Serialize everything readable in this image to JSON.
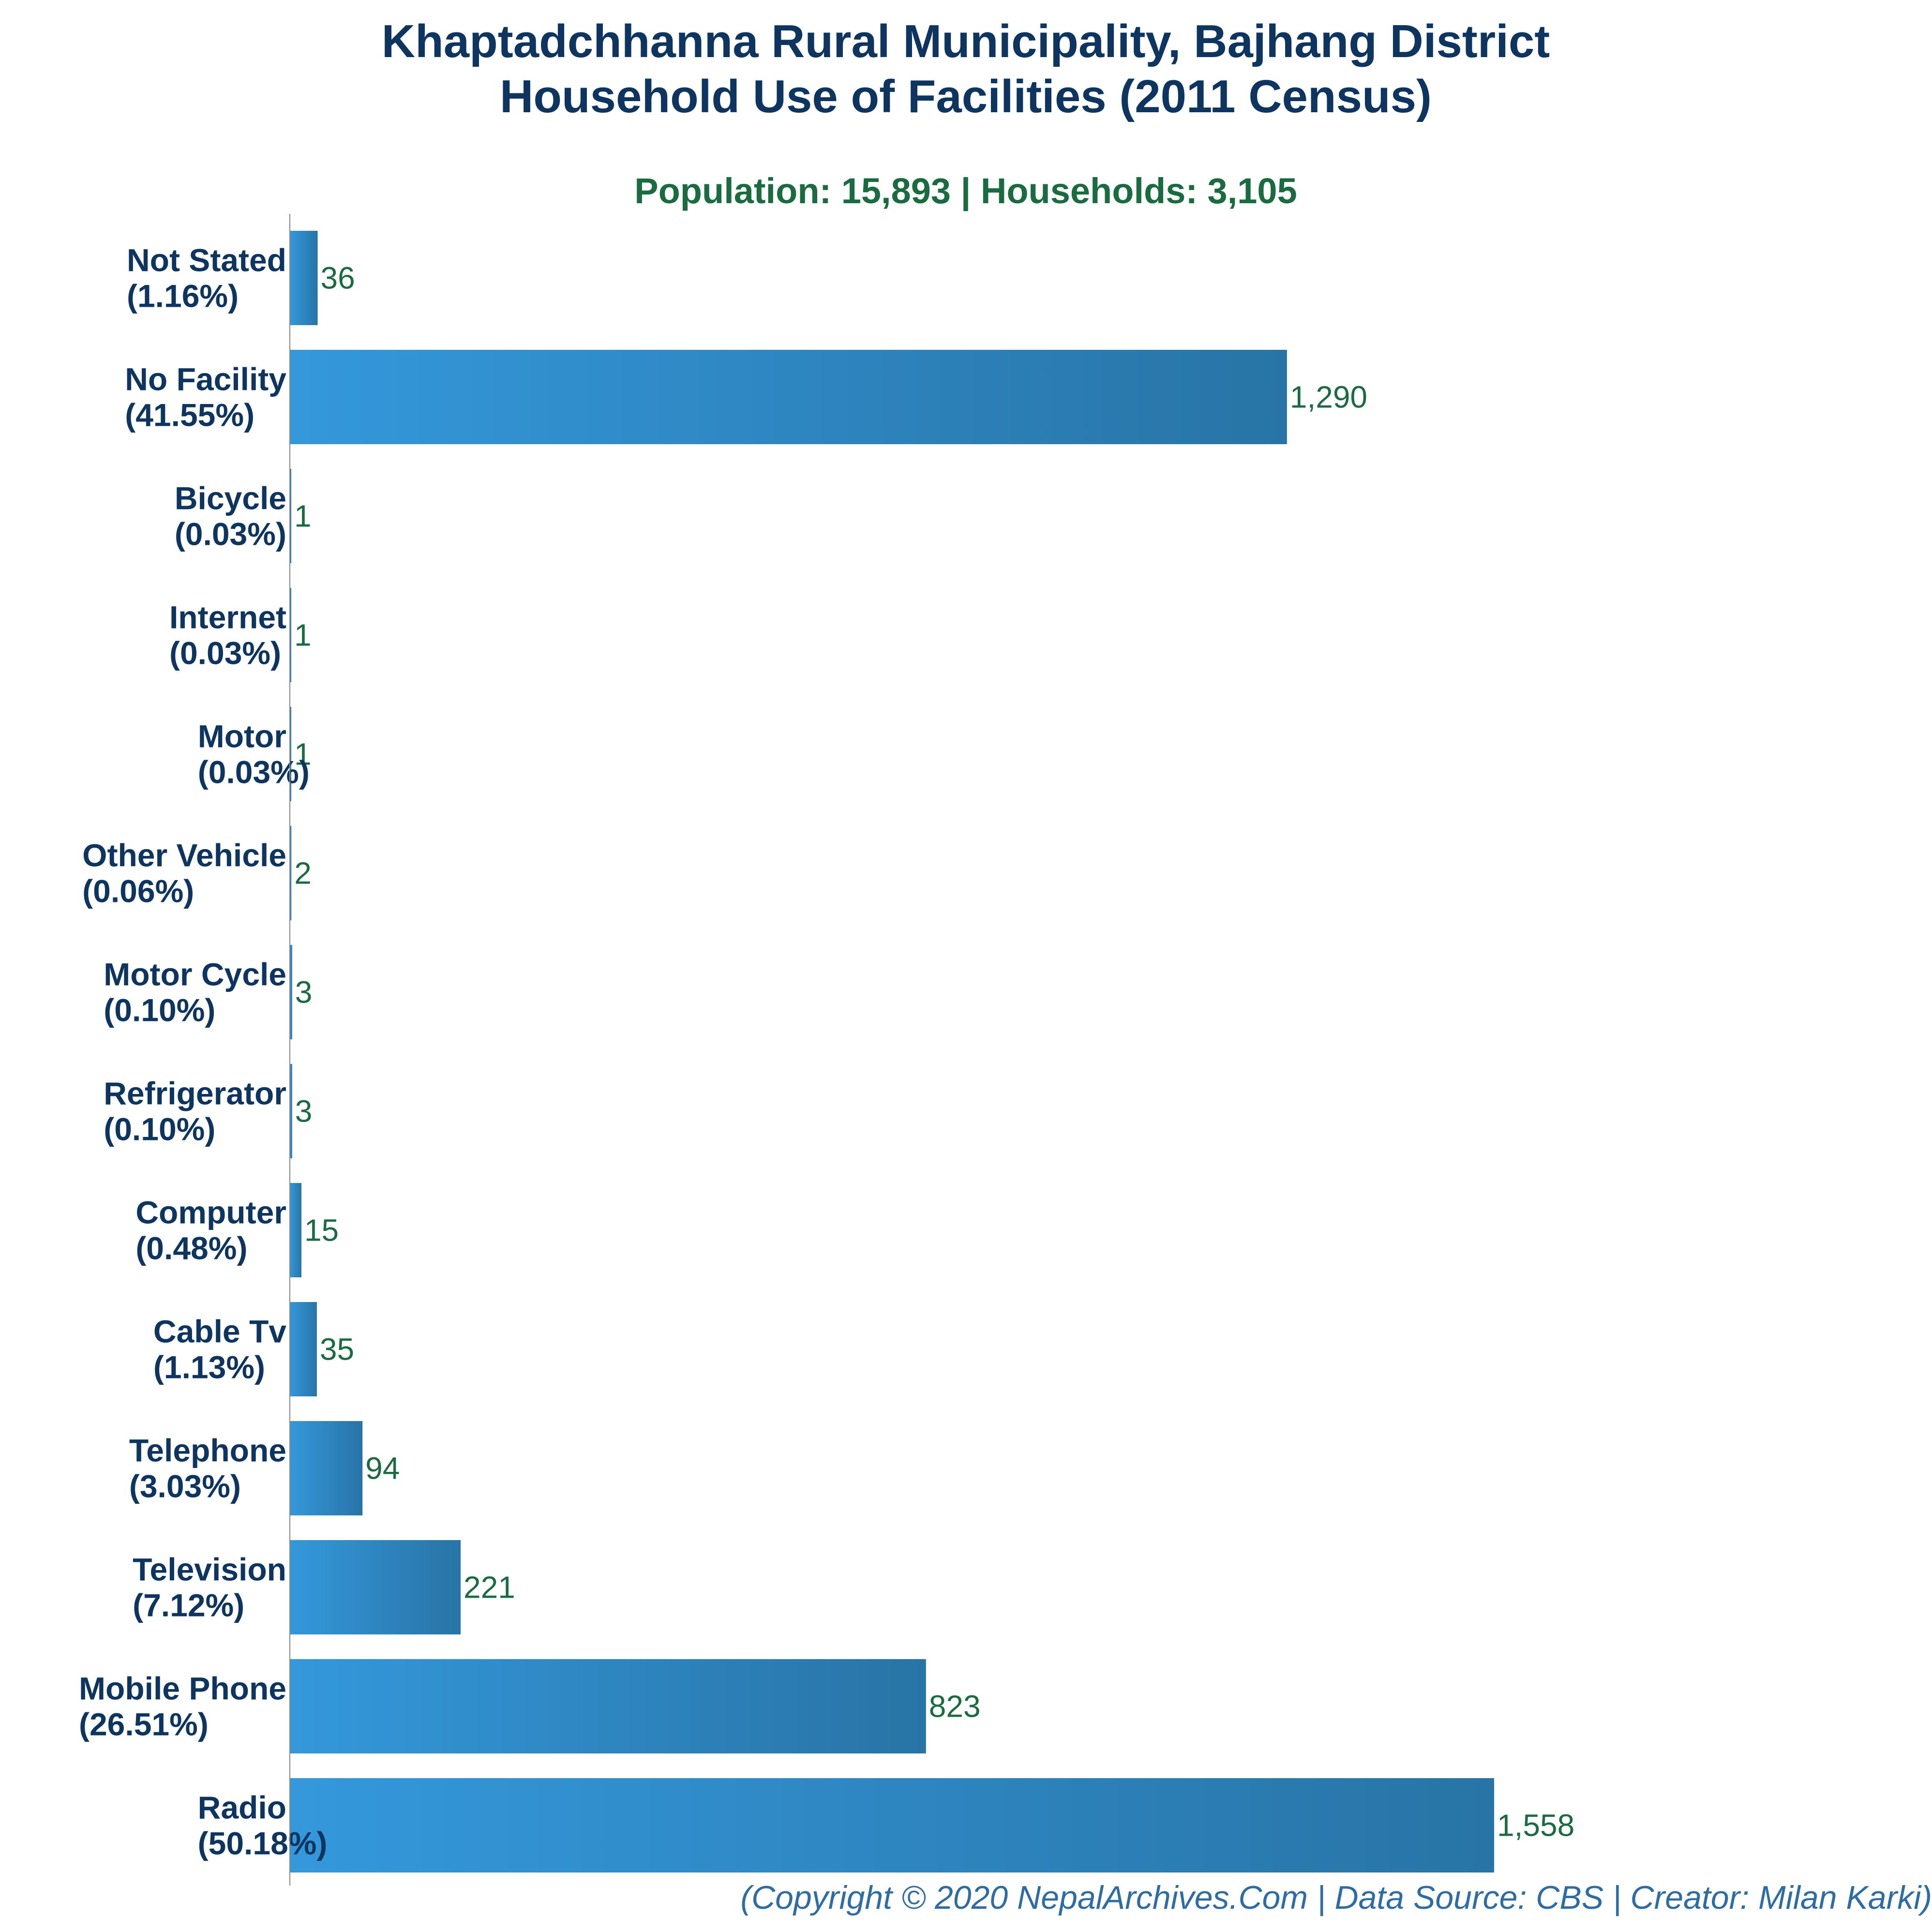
{
  "chart_data": {
    "type": "bar",
    "orientation": "horizontal",
    "title": [
      "Khaptadchhanna Rural Municipality, Bajhang District",
      "Household Use of Facilities (2011 Census)"
    ],
    "subtitle": "Population: 15,893 | Households: 3,105",
    "categories": [
      "Not Stated",
      "No Facility",
      "Bicycle",
      "Internet",
      "Motor",
      "Other Vehicle",
      "Motor Cycle",
      "Refrigerator",
      "Computer",
      "Cable Tv",
      "Telephone",
      "Television",
      "Mobile Phone",
      "Radio"
    ],
    "percent_labels": [
      "(1.16%)",
      "(41.55%)",
      "(0.03%)",
      "(0.03%)",
      "(0.03%)",
      "(0.06%)",
      "(0.10%)",
      "(0.10%)",
      "(0.48%)",
      "(1.13%)",
      "(3.03%)",
      "(7.12%)",
      "(26.51%)",
      "(50.18%)"
    ],
    "values": [
      36,
      1290,
      1,
      1,
      1,
      2,
      3,
      3,
      15,
      35,
      94,
      221,
      823,
      1558
    ],
    "value_labels": [
      "36",
      "1,290",
      "1",
      "1",
      "1",
      "2",
      "3",
      "3",
      "15",
      "35",
      "94",
      "221",
      "823",
      "1,558"
    ],
    "xlim": [
      0,
      1558
    ],
    "grid": false,
    "legend": "none",
    "footer": "(Copyright © 2020 NepalArchives.Com | Data Source: CBS | Creator: Milan Karki)",
    "colors": {
      "bar_start": "#3498db",
      "bar_end": "#2874a6",
      "title": "#0d3560",
      "subtitle": "#1a6b3f",
      "value_label": "#1a6b3f",
      "footer": "#2e6da4",
      "axis": "#888888"
    }
  }
}
